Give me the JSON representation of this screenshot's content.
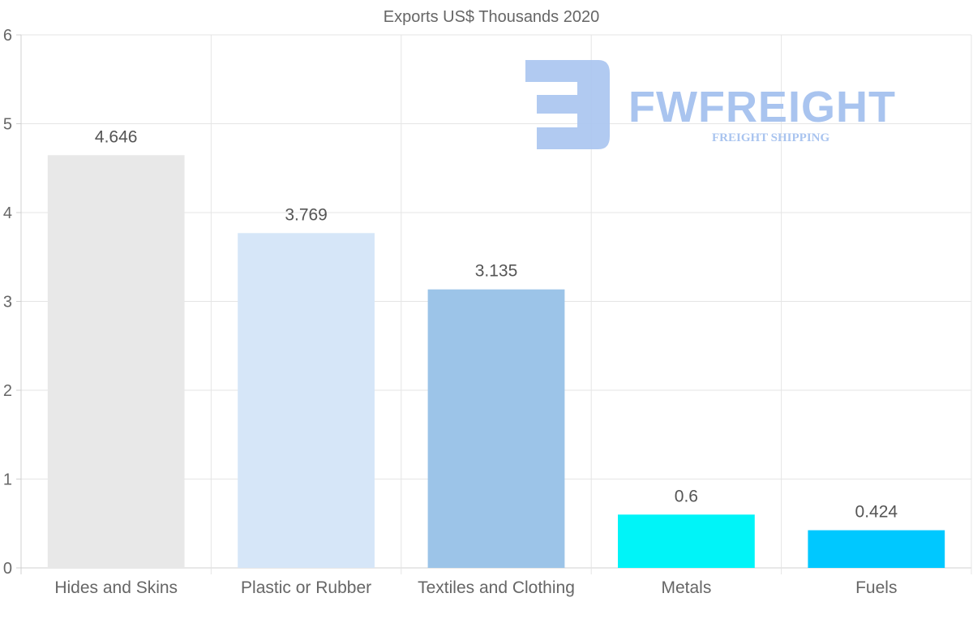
{
  "chart_data": {
    "type": "bar",
    "title": "Exports US$ Thousands 2020",
    "categories": [
      "Hides and Skins",
      "Plastic or Rubber",
      "Textiles and Clothing",
      "Metals",
      "Fuels"
    ],
    "values": [
      4.646,
      3.769,
      3.135,
      0.6,
      0.424
    ],
    "value_labels": [
      "4.646",
      "3.769",
      "3.135",
      "0.6",
      "0.424"
    ],
    "bar_colors": [
      "#e8e8e8",
      "#d6e6f8",
      "#9cc4e8",
      "#00f4f8",
      "#00c8ff"
    ],
    "ylim": [
      0,
      6
    ],
    "yticks": [
      "0",
      "1",
      "2",
      "3",
      "4",
      "5",
      "6"
    ],
    "xlabel": "",
    "ylabel": "",
    "grid": true,
    "legend": "none"
  },
  "watermark": {
    "title": "FWFREIGHT",
    "subtitle": "FREIGHT SHIPPING",
    "color": "#a9c4ef"
  }
}
